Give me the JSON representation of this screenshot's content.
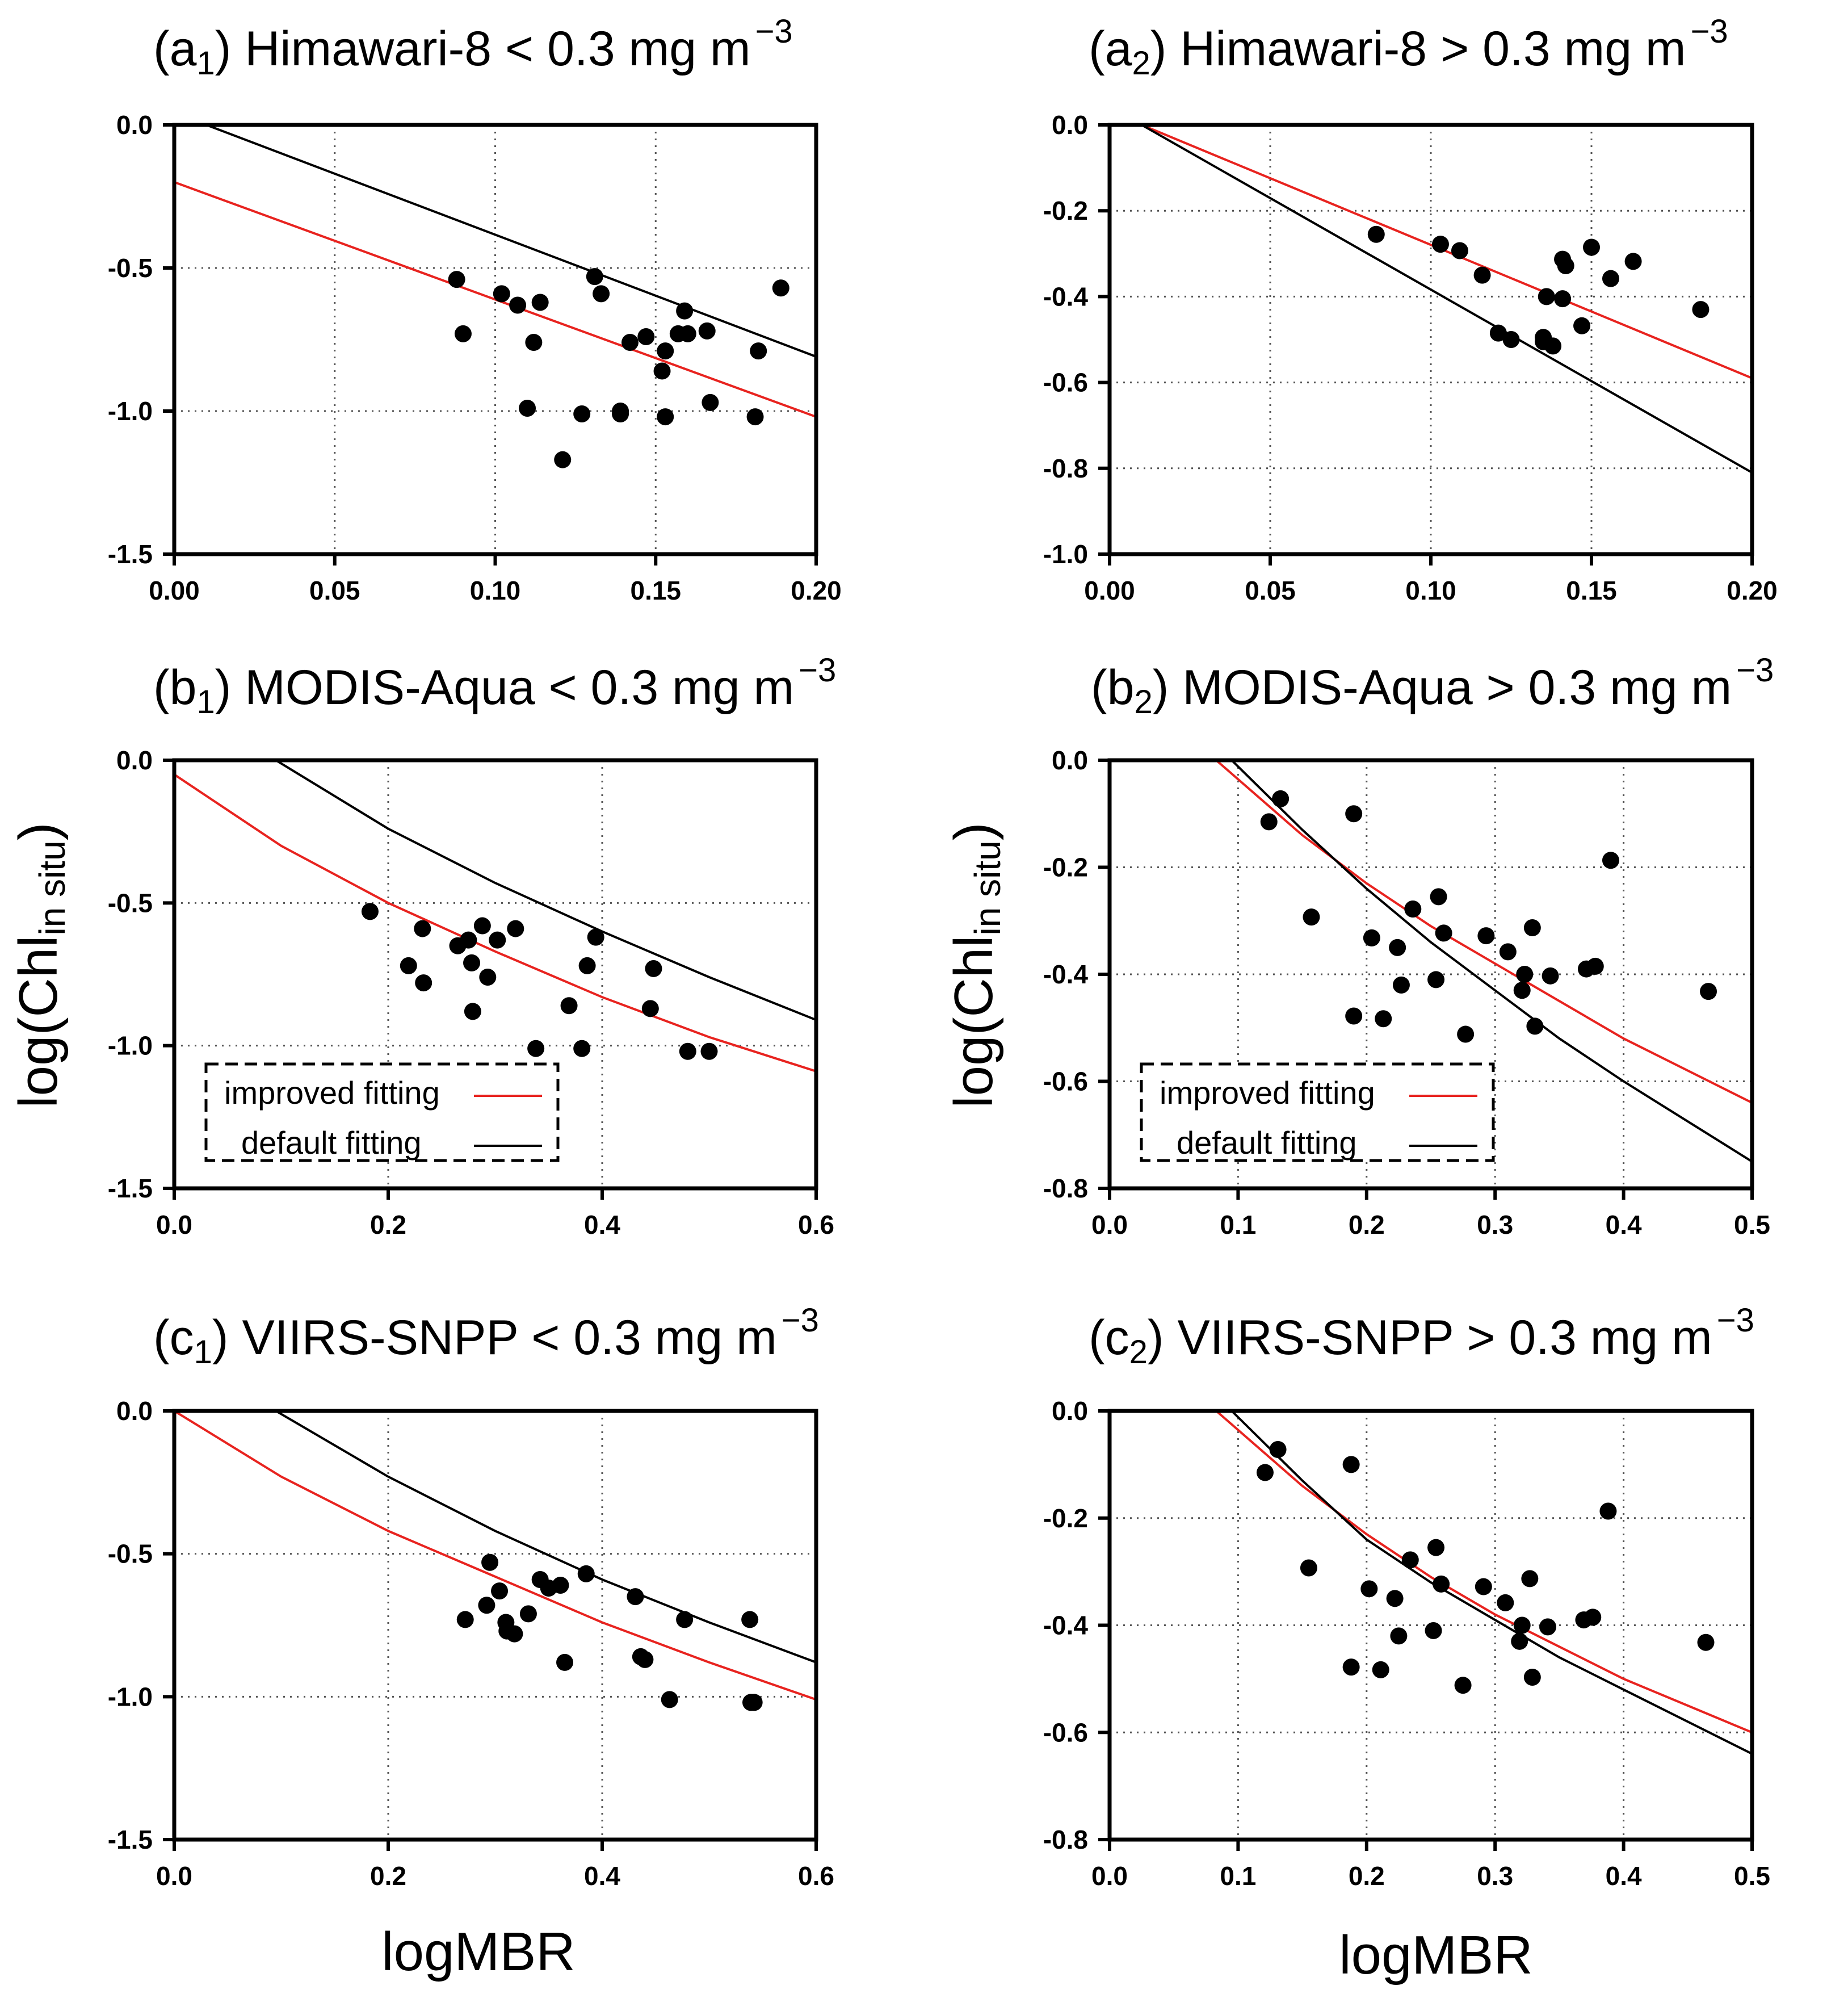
{
  "figure": {
    "xlabel": "logMBR",
    "ylabel_main": "log(Chl",
    "ylabel_sub": "in situ",
    "ylabel_close": ")"
  },
  "chart_data": [
    {
      "id": "a1",
      "type": "scatter",
      "title": {
        "prefix": "(a",
        "sub": "1",
        "rest": ") Himawari-8 < 0.3 mg m",
        "sup": "−3"
      },
      "xlim": [
        0,
        0.2
      ],
      "ylim": [
        -1.5,
        0
      ],
      "xticks": [
        0,
        0.05,
        0.1,
        0.15,
        0.2
      ],
      "xtick_labels": [
        "0.00",
        "0.05",
        "0.10",
        "0.15",
        "0.20"
      ],
      "yticks": [
        0,
        -0.5,
        -1.0,
        -1.5
      ],
      "ytick_labels": [
        "0.0",
        "-0.5",
        "-1.0",
        "-1.5"
      ],
      "grid": true,
      "points": [
        [
          0.088,
          -0.54
        ],
        [
          0.09,
          -0.73
        ],
        [
          0.102,
          -0.59
        ],
        [
          0.107,
          -0.63
        ],
        [
          0.11,
          -0.99
        ],
        [
          0.112,
          -0.76
        ],
        [
          0.114,
          -0.62
        ],
        [
          0.121,
          -1.17
        ],
        [
          0.127,
          -1.01
        ],
        [
          0.131,
          -0.53
        ],
        [
          0.133,
          -0.59
        ],
        [
          0.139,
          -1.0
        ],
        [
          0.139,
          -1.01
        ],
        [
          0.142,
          -0.76
        ],
        [
          0.147,
          -0.74
        ],
        [
          0.152,
          -0.86
        ],
        [
          0.153,
          -0.79
        ],
        [
          0.153,
          -1.02
        ],
        [
          0.157,
          -0.73
        ],
        [
          0.159,
          -0.65
        ],
        [
          0.16,
          -0.73
        ],
        [
          0.166,
          -0.72
        ],
        [
          0.167,
          -0.97
        ],
        [
          0.181,
          -1.02
        ],
        [
          0.182,
          -0.79
        ],
        [
          0.189,
          -0.57
        ]
      ],
      "series": [
        {
          "name": "improved fitting",
          "color": "#e8231f",
          "x": [
            0,
            0.2
          ],
          "y": [
            -0.2,
            -1.02
          ]
        },
        {
          "name": "default fitting",
          "color": "#000000",
          "x": [
            0.01,
            0.2
          ],
          "y": [
            0.0,
            -0.81
          ]
        }
      ]
    },
    {
      "id": "a2",
      "type": "scatter",
      "title": {
        "prefix": "(a",
        "sub": "2",
        "rest": ") Himawari-8 > 0.3 mg m",
        "sup": "−3"
      },
      "xlim": [
        0,
        0.2
      ],
      "ylim": [
        -1.0,
        0
      ],
      "xticks": [
        0,
        0.05,
        0.1,
        0.15,
        0.2
      ],
      "xtick_labels": [
        "0.00",
        "0.05",
        "0.10",
        "0.15",
        "0.20"
      ],
      "yticks": [
        0,
        -0.2,
        -0.4,
        -0.6,
        -0.8,
        -1.0
      ],
      "ytick_labels": [
        "0.0",
        "-0.2",
        "-0.4",
        "-0.6",
        "-0.8",
        "-1.0"
      ],
      "grid": true,
      "points": [
        [
          0.083,
          -0.255
        ],
        [
          0.103,
          -0.278
        ],
        [
          0.109,
          -0.293
        ],
        [
          0.116,
          -0.35
        ],
        [
          0.121,
          -0.485
        ],
        [
          0.125,
          -0.5
        ],
        [
          0.135,
          -0.495
        ],
        [
          0.135,
          -0.505
        ],
        [
          0.136,
          -0.4
        ],
        [
          0.138,
          -0.515
        ],
        [
          0.141,
          -0.405
        ],
        [
          0.141,
          -0.313
        ],
        [
          0.142,
          -0.328
        ],
        [
          0.147,
          -0.468
        ],
        [
          0.15,
          -0.285
        ],
        [
          0.156,
          -0.358
        ],
        [
          0.163,
          -0.318
        ],
        [
          0.184,
          -0.43
        ]
      ],
      "series": [
        {
          "name": "improved fitting",
          "color": "#e8231f",
          "x": [
            0.01,
            0.2
          ],
          "y": [
            0.0,
            -0.59
          ]
        },
        {
          "name": "default fitting",
          "color": "#000000",
          "x": [
            0.01,
            0.2
          ],
          "y": [
            0.0,
            -0.81
          ]
        }
      ]
    },
    {
      "id": "b1",
      "type": "scatter",
      "title": {
        "prefix": "(b",
        "sub": "1",
        "rest": ") MODIS-Aqua < 0.3 mg m",
        "sup": "−3"
      },
      "xlim": [
        0,
        0.6
      ],
      "ylim": [
        -1.5,
        0
      ],
      "xticks": [
        0,
        0.2,
        0.4,
        0.6
      ],
      "xtick_labels": [
        "0.0",
        "0.2",
        "0.4",
        "0.6"
      ],
      "yticks": [
        0,
        -0.5,
        -1.0,
        -1.5
      ],
      "ytick_labels": [
        "0.0",
        "-0.5",
        "-1.0",
        "-1.5"
      ],
      "grid": true,
      "points": [
        [
          0.183,
          -0.53
        ],
        [
          0.219,
          -0.72
        ],
        [
          0.232,
          -0.59
        ],
        [
          0.233,
          -0.78
        ],
        [
          0.265,
          -0.65
        ],
        [
          0.275,
          -0.63
        ],
        [
          0.278,
          -0.71
        ],
        [
          0.279,
          -0.88
        ],
        [
          0.288,
          -0.58
        ],
        [
          0.293,
          -0.76
        ],
        [
          0.302,
          -0.63
        ],
        [
          0.319,
          -0.59
        ],
        [
          0.338,
          -1.01
        ],
        [
          0.369,
          -0.86
        ],
        [
          0.381,
          -1.01
        ],
        [
          0.386,
          -0.72
        ],
        [
          0.394,
          -0.62
        ],
        [
          0.445,
          -0.87
        ],
        [
          0.448,
          -0.73
        ],
        [
          0.48,
          -1.02
        ],
        [
          0.5,
          -1.02
        ]
      ],
      "series": [
        {
          "name": "improved fitting",
          "color": "#e8231f",
          "x": [
            0,
            0.1,
            0.2,
            0.3,
            0.4,
            0.5,
            0.6
          ],
          "y": [
            -0.05,
            -0.3,
            -0.5,
            -0.67,
            -0.83,
            -0.97,
            -1.09
          ]
        },
        {
          "name": "default fitting",
          "color": "#000000",
          "x": [
            0.095,
            0.2,
            0.3,
            0.4,
            0.5,
            0.6
          ],
          "y": [
            0.0,
            -0.24,
            -0.43,
            -0.6,
            -0.76,
            -0.91
          ]
        }
      ],
      "legend": {
        "position": "bottom-left",
        "labels": [
          "improved fitting",
          "default fitting"
        ]
      }
    },
    {
      "id": "b2",
      "type": "scatter",
      "title": {
        "prefix": "(b",
        "sub": "2",
        "rest": ") MODIS-Aqua > 0.3 mg m",
        "sup": "−3"
      },
      "xlim": [
        0,
        0.5
      ],
      "ylim": [
        -0.8,
        0
      ],
      "xticks": [
        0,
        0.1,
        0.2,
        0.3,
        0.4,
        0.5
      ],
      "xtick_labels": [
        "0.0",
        "0.1",
        "0.2",
        "0.3",
        "0.4",
        "0.5"
      ],
      "yticks": [
        0,
        -0.2,
        -0.4,
        -0.6,
        -0.8
      ],
      "ytick_labels": [
        "0.0",
        "-0.2",
        "-0.4",
        "-0.6",
        "-0.8"
      ],
      "grid": true,
      "points": [
        [
          0.124,
          -0.115
        ],
        [
          0.133,
          -0.072
        ],
        [
          0.157,
          -0.293
        ],
        [
          0.19,
          -0.1
        ],
        [
          0.19,
          -0.478
        ],
        [
          0.204,
          -0.332
        ],
        [
          0.213,
          -0.483
        ],
        [
          0.224,
          -0.35
        ],
        [
          0.227,
          -0.42
        ],
        [
          0.236,
          -0.278
        ],
        [
          0.254,
          -0.41
        ],
        [
          0.256,
          -0.255
        ],
        [
          0.26,
          -0.323
        ],
        [
          0.277,
          -0.512
        ],
        [
          0.293,
          -0.328
        ],
        [
          0.31,
          -0.358
        ],
        [
          0.321,
          -0.43
        ],
        [
          0.323,
          -0.4
        ],
        [
          0.329,
          -0.313
        ],
        [
          0.331,
          -0.497
        ],
        [
          0.343,
          -0.403
        ],
        [
          0.371,
          -0.39
        ],
        [
          0.378,
          -0.385
        ],
        [
          0.39,
          -0.187
        ],
        [
          0.466,
          -0.432
        ]
      ],
      "series": [
        {
          "name": "improved fitting",
          "color": "#e8231f",
          "x": [
            0.083,
            0.15,
            0.2,
            0.25,
            0.3,
            0.35,
            0.4,
            0.5
          ],
          "y": [
            0.0,
            -0.14,
            -0.23,
            -0.31,
            -0.38,
            -0.45,
            -0.52,
            -0.64
          ]
        },
        {
          "name": "default fitting",
          "color": "#000000",
          "x": [
            0.095,
            0.15,
            0.2,
            0.25,
            0.3,
            0.35,
            0.4,
            0.5
          ],
          "y": [
            0.0,
            -0.13,
            -0.24,
            -0.34,
            -0.43,
            -0.52,
            -0.6,
            -0.75
          ]
        }
      ],
      "legend": {
        "position": "bottom-left",
        "labels": [
          "improved fitting",
          "default fitting"
        ]
      }
    },
    {
      "id": "c1",
      "type": "scatter",
      "title": {
        "prefix": "(c",
        "sub": "1",
        "rest": ") VIIRS-SNPP < 0.3 mg m",
        "sup": "−3"
      },
      "xlim": [
        0,
        0.6
      ],
      "ylim": [
        -1.5,
        0
      ],
      "xticks": [
        0,
        0.2,
        0.4,
        0.6
      ],
      "xtick_labels": [
        "0.0",
        "0.2",
        "0.4",
        "0.6"
      ],
      "yticks": [
        0,
        -0.5,
        -1.0,
        -1.5
      ],
      "ytick_labels": [
        "0.0",
        "-0.5",
        "-1.0",
        "-1.5"
      ],
      "grid": true,
      "points": [
        [
          0.272,
          -0.73
        ],
        [
          0.292,
          -0.68
        ],
        [
          0.295,
          -0.53
        ],
        [
          0.304,
          -0.63
        ],
        [
          0.31,
          -0.74
        ],
        [
          0.311,
          -0.77
        ],
        [
          0.318,
          -0.78
        ],
        [
          0.331,
          -0.71
        ],
        [
          0.342,
          -0.59
        ],
        [
          0.35,
          -0.62
        ],
        [
          0.361,
          -0.61
        ],
        [
          0.365,
          -0.88
        ],
        [
          0.385,
          -0.57
        ],
        [
          0.431,
          -0.65
        ],
        [
          0.436,
          -0.86
        ],
        [
          0.44,
          -0.87
        ],
        [
          0.463,
          -1.01
        ],
        [
          0.477,
          -0.73
        ],
        [
          0.538,
          -0.73
        ],
        [
          0.539,
          -1.02
        ],
        [
          0.542,
          -1.02
        ]
      ],
      "series": [
        {
          "name": "improved fitting",
          "color": "#e8231f",
          "x": [
            0,
            0.1,
            0.2,
            0.3,
            0.4,
            0.5,
            0.6
          ],
          "y": [
            0.0,
            -0.23,
            -0.42,
            -0.58,
            -0.74,
            -0.88,
            -1.01
          ]
        },
        {
          "name": "default fitting",
          "color": "#000000",
          "x": [
            0.095,
            0.2,
            0.3,
            0.4,
            0.5,
            0.6
          ],
          "y": [
            0.0,
            -0.23,
            -0.42,
            -0.59,
            -0.74,
            -0.88
          ]
        }
      ]
    },
    {
      "id": "c2",
      "type": "scatter",
      "title": {
        "prefix": "(c",
        "sub": "2",
        "rest": ") VIIRS-SNPP > 0.3 mg m",
        "sup": "−3"
      },
      "xlim": [
        0,
        0.5
      ],
      "ylim": [
        -0.8,
        0
      ],
      "xticks": [
        0,
        0.1,
        0.2,
        0.3,
        0.4,
        0.5
      ],
      "xtick_labels": [
        "0.0",
        "0.1",
        "0.2",
        "0.3",
        "0.4",
        "0.5"
      ],
      "yticks": [
        0,
        -0.2,
        -0.4,
        -0.6,
        -0.8
      ],
      "ytick_labels": [
        "0.0",
        "-0.2",
        "-0.4",
        "-0.6",
        "-0.8"
      ],
      "grid": true,
      "points": [
        [
          0.121,
          -0.115
        ],
        [
          0.131,
          -0.072
        ],
        [
          0.155,
          -0.293
        ],
        [
          0.188,
          -0.1
        ],
        [
          0.188,
          -0.478
        ],
        [
          0.202,
          -0.332
        ],
        [
          0.211,
          -0.483
        ],
        [
          0.222,
          -0.35
        ],
        [
          0.225,
          -0.42
        ],
        [
          0.234,
          -0.278
        ],
        [
          0.252,
          -0.41
        ],
        [
          0.254,
          -0.255
        ],
        [
          0.258,
          -0.323
        ],
        [
          0.275,
          -0.512
        ],
        [
          0.291,
          -0.328
        ],
        [
          0.308,
          -0.358
        ],
        [
          0.319,
          -0.43
        ],
        [
          0.321,
          -0.4
        ],
        [
          0.327,
          -0.313
        ],
        [
          0.329,
          -0.497
        ],
        [
          0.341,
          -0.403
        ],
        [
          0.369,
          -0.39
        ],
        [
          0.376,
          -0.385
        ],
        [
          0.388,
          -0.187
        ],
        [
          0.464,
          -0.432
        ]
      ],
      "series": [
        {
          "name": "improved fitting",
          "color": "#e8231f",
          "x": [
            0.083,
            0.15,
            0.2,
            0.25,
            0.3,
            0.35,
            0.4,
            0.5
          ],
          "y": [
            0.0,
            -0.14,
            -0.23,
            -0.31,
            -0.38,
            -0.44,
            -0.5,
            -0.6
          ]
        },
        {
          "name": "default fitting",
          "color": "#000000",
          "x": [
            0.095,
            0.15,
            0.2,
            0.25,
            0.3,
            0.35,
            0.4,
            0.5
          ],
          "y": [
            0.0,
            -0.13,
            -0.24,
            -0.32,
            -0.39,
            -0.46,
            -0.52,
            -0.64
          ]
        }
      ]
    }
  ]
}
